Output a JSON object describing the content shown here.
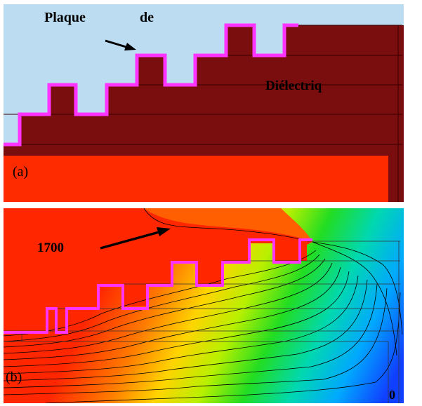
{
  "panel_a": {
    "caption": "(a)",
    "label_plate": "Plaque",
    "label_plate_2": "de",
    "label_dielectric": "Diélectriq",
    "colors": {
      "air": "#bcdcf2",
      "dielectric": "#7a0d0d",
      "ground": "#ff2b00",
      "plate": "#ff33ff"
    }
  },
  "panel_b": {
    "caption": "(b)",
    "label_value": "1700",
    "label_zero": "0",
    "colors": {
      "high": "#ff2600",
      "plate": "#ff33ff",
      "contour": "#000000"
    }
  }
}
